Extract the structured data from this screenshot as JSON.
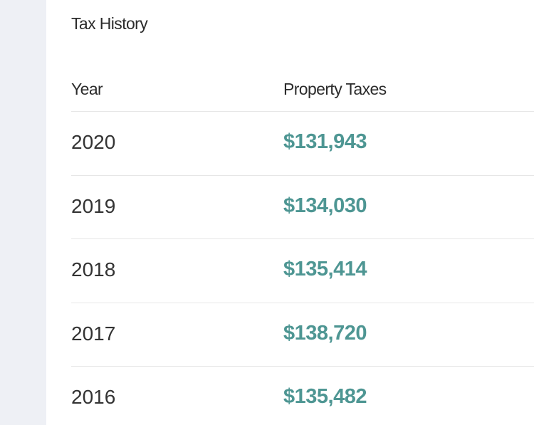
{
  "header": {
    "title": "Tax History"
  },
  "table": {
    "columns": [
      "Year",
      "Property Taxes"
    ],
    "rows": [
      [
        "2020",
        "$131,943"
      ],
      [
        "2019",
        "$134,030"
      ],
      [
        "2018",
        "$135,414"
      ],
      [
        "2017",
        "$138,720"
      ],
      [
        "2016",
        "$135,482"
      ]
    ]
  }
}
